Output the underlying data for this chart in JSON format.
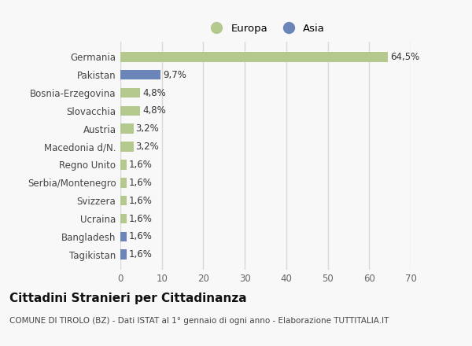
{
  "categories": [
    "Tagikistan",
    "Bangladesh",
    "Ucraina",
    "Svizzera",
    "Serbia/Montenegro",
    "Regno Unito",
    "Macedonia d/N.",
    "Austria",
    "Slovacchia",
    "Bosnia-Erzegovina",
    "Pakistan",
    "Germania"
  ],
  "values": [
    1.6,
    1.6,
    1.6,
    1.6,
    1.6,
    1.6,
    3.2,
    3.2,
    4.8,
    4.8,
    9.7,
    64.5
  ],
  "labels": [
    "1,6%",
    "1,6%",
    "1,6%",
    "1,6%",
    "1,6%",
    "1,6%",
    "3,2%",
    "3,2%",
    "4,8%",
    "4,8%",
    "9,7%",
    "64,5%"
  ],
  "colors": [
    "#6b85b8",
    "#6b85b8",
    "#b5c98e",
    "#b5c98e",
    "#b5c98e",
    "#b5c98e",
    "#b5c98e",
    "#b5c98e",
    "#b5c98e",
    "#b5c98e",
    "#6b85b8",
    "#b5c98e"
  ],
  "europa_color": "#b5c98e",
  "asia_color": "#6b85b8",
  "title": "Cittadini Stranieri per Cittadinanza",
  "subtitle": "COMUNE DI TIROLO (BZ) - Dati ISTAT al 1° gennaio di ogni anno - Elaborazione TUTTITALIA.IT",
  "xlim": [
    0,
    70
  ],
  "xticks": [
    0,
    10,
    20,
    30,
    40,
    50,
    60,
    70
  ],
  "background_color": "#f8f8f8",
  "grid_color": "#d8d8d8",
  "bar_height": 0.55,
  "label_fontsize": 8.5,
  "tick_fontsize": 8.5,
  "title_fontsize": 11,
  "subtitle_fontsize": 7.5
}
